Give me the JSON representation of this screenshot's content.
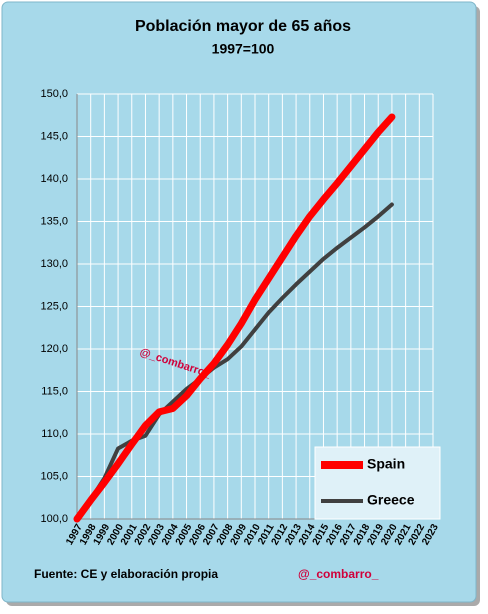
{
  "chart_data": {
    "type": "line",
    "title": "Población  mayor de 65 años",
    "subtitle": "1997=100",
    "categories": [
      "1997",
      "1998",
      "1999",
      "2000",
      "2001",
      "2002",
      "2003",
      "2004",
      "2005",
      "2006",
      "2007",
      "2008",
      "2009",
      "2010",
      "2011",
      "2012",
      "2013",
      "2014",
      "2015",
      "2016",
      "2017",
      "2018",
      "2019",
      "2020",
      "2021",
      "2022",
      "2023"
    ],
    "series": [
      {
        "name": "Spain",
        "color": "#ff0000",
        "values": [
          100,
          102.2,
          104.3,
          106.5,
          108.8,
          111.0,
          112.6,
          113.0,
          114.5,
          116.5,
          118.3,
          120.5,
          123.0,
          125.8,
          128.3,
          130.8,
          133.3,
          135.6,
          137.6,
          139.5,
          141.5,
          143.5,
          145.5,
          147.3,
          null,
          null,
          null
        ]
      },
      {
        "name": "Greece",
        "color": "#404040",
        "values": [
          100,
          102.3,
          104.8,
          108.3,
          109.2,
          109.8,
          112.3,
          113.8,
          115.3,
          116.5,
          117.8,
          118.8,
          120.3,
          122.3,
          124.3,
          126.0,
          127.6,
          129.1,
          130.6,
          131.9,
          133.1,
          134.3,
          135.6,
          137.0,
          null,
          null,
          null
        ]
      }
    ],
    "ylim": [
      100,
      150
    ],
    "yticks": [
      {
        "value": 100,
        "label": "100,0"
      },
      {
        "value": 105,
        "label": "105,0"
      },
      {
        "value": 110,
        "label": "110,0"
      },
      {
        "value": 115,
        "label": "115,0"
      },
      {
        "value": 120,
        "label": "120,0"
      },
      {
        "value": 125,
        "label": "125,0"
      },
      {
        "value": 130,
        "label": "130,0"
      },
      {
        "value": 135,
        "label": "135,0"
      },
      {
        "value": 140,
        "label": "140,0"
      },
      {
        "value": 145,
        "label": "145,0"
      },
      {
        "value": 150,
        "label": "150,0"
      }
    ],
    "grid": true,
    "legend": "lower right",
    "watermark": "@_combarro_",
    "source": "Fuente:  CE y elaboración propia",
    "credit": "@_combarro_"
  }
}
